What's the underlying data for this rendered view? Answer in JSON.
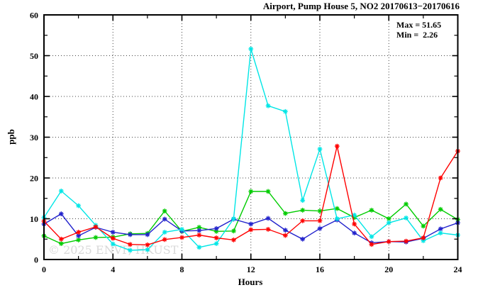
{
  "chart_data": {
    "type": "line",
    "title": "Airport, Pump House 5, NO2 20170613−20170616",
    "xlabel": "Hours",
    "ylabel": "ppb",
    "xlim": [
      0,
      24
    ],
    "ylim": [
      0,
      60
    ],
    "xticks": [
      0,
      4,
      8,
      12,
      16,
      20,
      24
    ],
    "yticks": [
      0,
      10,
      20,
      30,
      40,
      50,
      60
    ],
    "x_minor_ticks": [
      2,
      6,
      10,
      14,
      18,
      22
    ],
    "y_minor_ticks": [
      5,
      15,
      25,
      35,
      45,
      55
    ],
    "grid": "dotted-at-major-ticks",
    "legend": "none",
    "marker": "asterisk",
    "x": [
      0,
      1,
      2,
      3,
      4,
      5,
      6,
      7,
      8,
      9,
      10,
      11,
      12,
      13,
      14,
      15,
      16,
      17,
      18,
      19,
      20,
      21,
      22,
      23,
      24
    ],
    "series": [
      {
        "name": "green",
        "color": "#00cc00",
        "values": [
          5.8,
          3.9,
          4.8,
          5.4,
          5.5,
          6.3,
          6.4,
          11.9,
          6.9,
          7.9,
          6.9,
          7.0,
          16.7,
          16.7,
          11.3,
          12.1,
          11.9,
          12.5,
          10.3,
          12.1,
          10.0,
          13.6,
          8.2,
          12.3,
          9.8
        ]
      },
      {
        "name": "blue",
        "color": "#2222cc",
        "values": [
          8.7,
          11.2,
          5.8,
          7.9,
          6.7,
          6.1,
          6.1,
          9.9,
          7.0,
          7.1,
          7.6,
          9.9,
          8.7,
          10.1,
          7.2,
          5.0,
          7.6,
          9.7,
          6.5,
          4.1,
          4.4,
          4.3,
          5.2,
          7.5,
          9.0
        ]
      },
      {
        "name": "cyan",
        "color": "#00e6e6",
        "values": [
          10.3,
          16.8,
          13.2,
          8.4,
          3.8,
          2.26,
          2.4,
          6.7,
          7.4,
          3.0,
          3.9,
          10.0,
          51.65,
          37.7,
          36.3,
          14.5,
          27.1,
          10.0,
          10.9,
          5.6,
          9.0,
          10.2,
          4.6,
          6.5,
          6.0
        ]
      },
      {
        "name": "red",
        "color": "#ff0000",
        "values": [
          9.4,
          5.0,
          6.7,
          8.0,
          5.2,
          3.7,
          3.6,
          4.9,
          5.4,
          6.0,
          5.3,
          4.8,
          7.3,
          7.4,
          5.9,
          9.5,
          9.5,
          27.8,
          8.7,
          3.7,
          4.4,
          4.5,
          5.3,
          20.0,
          26.6
        ]
      }
    ],
    "stats": {
      "max": 51.65,
      "min": 2.26
    }
  },
  "annotations": {
    "max_label": "Max = 51.65",
    "min_label": "Min =  2.26"
  },
  "watermark": "© 2025 ENVF, HKUST"
}
